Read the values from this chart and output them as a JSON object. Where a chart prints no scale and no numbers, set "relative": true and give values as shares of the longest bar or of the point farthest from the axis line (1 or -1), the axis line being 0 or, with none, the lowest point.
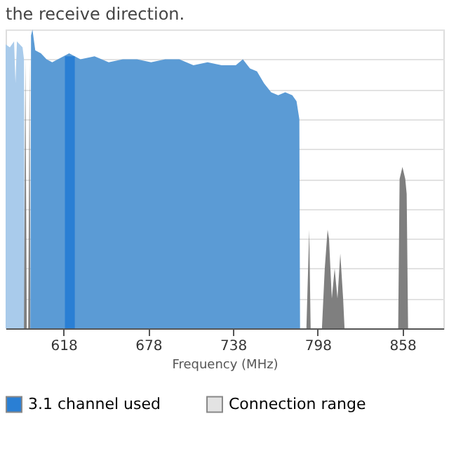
{
  "chart_data": {
    "type": "area",
    "title": "the receive direction.",
    "xlabel": "Frequency (MHz)",
    "relative": true,
    "xlim": [
      577,
      887
    ],
    "xticks": [
      618,
      678,
      738,
      798,
      858
    ],
    "grid": "y",
    "legend": "bottom",
    "series": [
      {
        "color": "#a9cbeb",
        "x": [
          577,
          580,
          583,
          584,
          585,
          587,
          589,
          590,
          590.5
        ],
        "values": [
          0.95,
          0.94,
          0.96,
          0.82,
          0.96,
          0.95,
          0.94,
          0.9,
          0
        ]
      },
      {
        "color": "#7f7f7f",
        "x": [
          590,
          591,
          592,
          593,
          594,
          594.5,
          790,
          792,
          793,
          801,
          803,
          805,
          806,
          808,
          810,
          812,
          814,
          816,
          817,
          855,
          856,
          858,
          860,
          861,
          862,
          887
        ],
        "values": [
          0,
          0.9,
          0,
          0,
          0.9,
          0,
          0,
          0.33,
          0,
          0,
          0.2,
          0.33,
          0.3,
          0.1,
          0.2,
          0.1,
          0.25,
          0.1,
          0,
          0,
          0.5,
          0.54,
          0.5,
          0.45,
          0,
          0
        ]
      },
      {
        "color": "#5b9bd5",
        "x": [
          594.5,
          595,
          596,
          598,
          602,
          606,
          610,
          614,
          618,
          622,
          630,
          640,
          650,
          660,
          670,
          680,
          690,
          700,
          710,
          720,
          730,
          740,
          745,
          750,
          755,
          760,
          765,
          770,
          775,
          780,
          783,
          785,
          785.5
        ],
        "values": [
          0,
          0.98,
          1.0,
          0.93,
          0.92,
          0.9,
          0.89,
          0.9,
          0.91,
          0.92,
          0.9,
          0.91,
          0.89,
          0.9,
          0.9,
          0.89,
          0.9,
          0.9,
          0.88,
          0.89,
          0.88,
          0.88,
          0.9,
          0.87,
          0.86,
          0.82,
          0.79,
          0.78,
          0.79,
          0.78,
          0.76,
          0.7,
          0
        ]
      },
      {
        "name": "3.1 channel used",
        "color": "#2a7fd4",
        "x": [
          619,
          626
        ],
        "values": [
          0.91,
          0.91
        ]
      },
      {
        "name": "Connection range",
        "color": "#e3e3e3"
      }
    ]
  }
}
